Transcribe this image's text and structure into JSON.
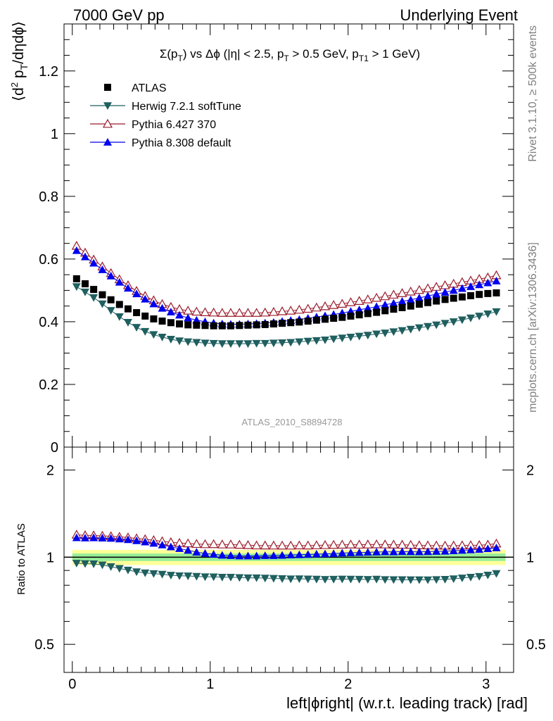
{
  "header": {
    "left": "7000 GeV pp",
    "right": "Underlying Event"
  },
  "side_labels": {
    "rivet": "Rivet 3.1.10, ≥ 500k events",
    "mcplots": "mcplots.cern.ch [arXiv:1306.3436]"
  },
  "chart_data": [
    {
      "type": "scatter",
      "title": "Σ(p_T) vs Δϕ (|η| < 2.5, p_T > 0.5 GeV, p_T1 > 1 GeV)",
      "ylabel": "⟨d² p_T/dηdϕ⟩",
      "analysis_label": "ATLAS_2010_S8894728",
      "ylim": [
        0,
        1.35
      ],
      "xlim": [
        -0.06,
        3.2
      ],
      "y_ticks": [
        "0",
        "0.2",
        "0.4",
        "0.6",
        "0.8",
        "1",
        "1.2"
      ],
      "legend_position": "top-left",
      "x": [
        0.031,
        0.093,
        0.155,
        0.218,
        0.28,
        0.342,
        0.404,
        0.466,
        0.528,
        0.59,
        0.652,
        0.715,
        0.777,
        0.839,
        0.901,
        0.963,
        1.025,
        1.087,
        1.149,
        1.212,
        1.274,
        1.336,
        1.398,
        1.46,
        1.522,
        1.584,
        1.646,
        1.709,
        1.771,
        1.833,
        1.895,
        1.957,
        2.019,
        2.081,
        2.143,
        2.206,
        2.268,
        2.33,
        2.392,
        2.454,
        2.516,
        2.578,
        2.64,
        2.703,
        2.765,
        2.827,
        2.889,
        2.951,
        3.013,
        3.075
      ],
      "series": [
        {
          "name": "ATLAS",
          "color": "#000000",
          "marker": "square",
          "values": [
            0.537,
            0.521,
            0.503,
            0.486,
            0.47,
            0.455,
            0.441,
            0.429,
            0.418,
            0.409,
            0.402,
            0.397,
            0.393,
            0.39,
            0.389,
            0.388,
            0.387,
            0.387,
            0.387,
            0.388,
            0.389,
            0.39,
            0.391,
            0.393,
            0.395,
            0.397,
            0.399,
            0.402,
            0.405,
            0.408,
            0.411,
            0.414,
            0.418,
            0.422,
            0.426,
            0.43,
            0.435,
            0.44,
            0.445,
            0.45,
            0.456,
            0.461,
            0.466,
            0.471,
            0.475,
            0.479,
            0.483,
            0.487,
            0.49,
            0.492
          ]
        },
        {
          "name": "Herwig 7.2.1 softTune",
          "color": "#1f5f5f",
          "marker": "triangle-down",
          "values": [
            0.512,
            0.495,
            0.477,
            0.457,
            0.436,
            0.416,
            0.398,
            0.382,
            0.369,
            0.359,
            0.351,
            0.344,
            0.339,
            0.336,
            0.334,
            0.332,
            0.331,
            0.33,
            0.33,
            0.33,
            0.33,
            0.331,
            0.331,
            0.332,
            0.333,
            0.334,
            0.336,
            0.338,
            0.34,
            0.342,
            0.345,
            0.348,
            0.351,
            0.354,
            0.357,
            0.361,
            0.364,
            0.368,
            0.372,
            0.376,
            0.381,
            0.385,
            0.39,
            0.395,
            0.4,
            0.406,
            0.412,
            0.418,
            0.425,
            0.432
          ]
        },
        {
          "name": "Pythia 6.427 370",
          "color": "#9b1c2c",
          "marker": "triangle-up-open",
          "values": [
            0.642,
            0.62,
            0.598,
            0.576,
            0.555,
            0.535,
            0.516,
            0.498,
            0.482,
            0.468,
            0.456,
            0.447,
            0.44,
            0.435,
            0.432,
            0.43,
            0.429,
            0.428,
            0.428,
            0.428,
            0.428,
            0.428,
            0.429,
            0.431,
            0.433,
            0.435,
            0.438,
            0.441,
            0.445,
            0.449,
            0.453,
            0.457,
            0.462,
            0.466,
            0.471,
            0.476,
            0.481,
            0.486,
            0.491,
            0.496,
            0.501,
            0.506,
            0.511,
            0.516,
            0.521,
            0.526,
            0.531,
            0.536,
            0.541,
            0.548
          ]
        },
        {
          "name": "Pythia 8.308 default",
          "color": "#0000ee",
          "marker": "triangle-up",
          "values": [
            0.627,
            0.607,
            0.587,
            0.566,
            0.546,
            0.526,
            0.507,
            0.489,
            0.472,
            0.457,
            0.443,
            0.431,
            0.421,
            0.412,
            0.405,
            0.4,
            0.396,
            0.393,
            0.392,
            0.392,
            0.393,
            0.394,
            0.396,
            0.398,
            0.401,
            0.404,
            0.407,
            0.411,
            0.415,
            0.419,
            0.423,
            0.428,
            0.433,
            0.438,
            0.443,
            0.448,
            0.454,
            0.459,
            0.465,
            0.47,
            0.476,
            0.482,
            0.488,
            0.494,
            0.5,
            0.506,
            0.512,
            0.518,
            0.524,
            0.53
          ]
        }
      ]
    },
    {
      "type": "scatter",
      "ylabel": "Ratio to ATLAS",
      "xlabel": "left|ϕright| (w.r.t. leading track) [rad]",
      "xlim": [
        -0.06,
        3.2
      ],
      "ylim": [
        0.4,
        2.4
      ],
      "y_scale": "log",
      "y_ticks": [
        "0.5",
        "1",
        "2"
      ],
      "x_ticks": [
        "0",
        "1",
        "2",
        "3"
      ],
      "reference_line": 1,
      "band_outer": 0.06,
      "band_inner": 0.03,
      "band_outer_color": "#ffff99",
      "band_inner_color": "#99ee99"
    }
  ]
}
